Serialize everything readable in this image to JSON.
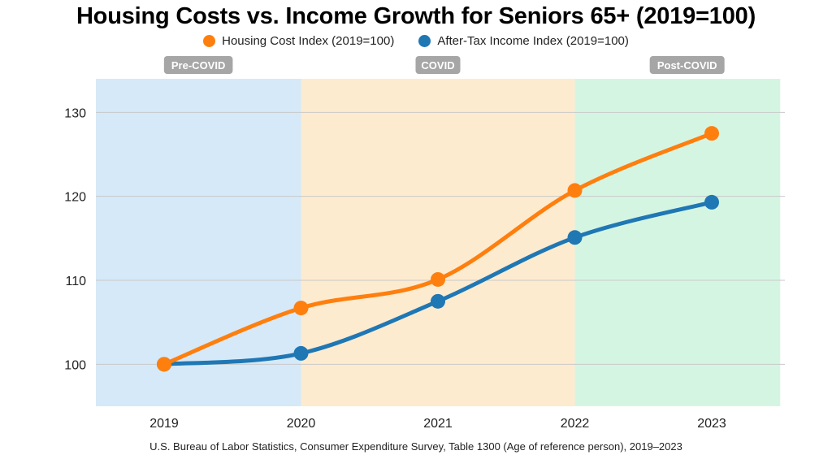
{
  "chart_data": {
    "type": "line",
    "title": "Housing Costs vs. Income Growth for Seniors 65+ (2019=100)",
    "categories": [
      "2019",
      "2020",
      "2021",
      "2022",
      "2023"
    ],
    "series": [
      {
        "name": "Housing Cost Index (2019=100)",
        "color": "#ff7f0e",
        "values": [
          100.0,
          106.7,
          110.1,
          120.7,
          127.5
        ]
      },
      {
        "name": "After-Tax Income Index (2019=100)",
        "color": "#1f77b4",
        "values": [
          100.0,
          101.3,
          107.5,
          115.1,
          119.3
        ]
      }
    ],
    "ylim": [
      95,
      134
    ],
    "yticks": [
      100,
      110,
      120,
      130
    ],
    "grid": true,
    "legend_position": "top-center",
    "periods": [
      {
        "label": "Pre-COVID",
        "start": "2018.5",
        "end": "2020",
        "color": "#d6e9f8"
      },
      {
        "label": "COVID",
        "start": "2020",
        "end": "2022",
        "color": "#fdebd0"
      },
      {
        "label": "Post-COVID",
        "start": "2022",
        "end": "2023.5",
        "color": "#d5f5e3"
      }
    ],
    "source": "U.S. Bureau of Labor Statistics, Consumer Expenditure Survey, Table 1300 (Age of reference person), 2019–2023"
  }
}
